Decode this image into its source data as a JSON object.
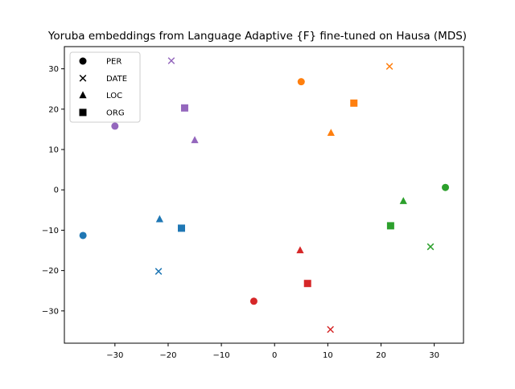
{
  "chart_data": {
    "type": "scatter",
    "title": "Yoruba embeddings from Language Adaptive {F} fine-tuned on Hausa (MDS)",
    "xlabel": "",
    "ylabel": "",
    "xlim": [
      -39.5,
      35.5
    ],
    "ylim": [
      -38,
      35.5
    ],
    "xticks": [
      -30,
      -20,
      -10,
      0,
      10,
      20,
      30
    ],
    "yticks": [
      -30,
      -20,
      -10,
      0,
      10,
      20,
      30
    ],
    "grid": false,
    "legend": {
      "location": "top-left",
      "entries": [
        {
          "label": "PER",
          "marker": "circle"
        },
        {
          "label": "DATE",
          "marker": "x"
        },
        {
          "label": "LOC",
          "marker": "triangle"
        },
        {
          "label": "ORG",
          "marker": "square"
        }
      ]
    },
    "series": [
      {
        "color": "#1f77b4",
        "points": [
          {
            "x": -36.0,
            "y": -11.3,
            "marker": "circle"
          },
          {
            "x": -21.8,
            "y": -20.2,
            "marker": "x"
          },
          {
            "x": -21.6,
            "y": -7.3,
            "marker": "triangle"
          },
          {
            "x": -17.5,
            "y": -9.5,
            "marker": "square"
          }
        ]
      },
      {
        "color": "#ff7f0e",
        "points": [
          {
            "x": 5.0,
            "y": 26.8,
            "marker": "circle"
          },
          {
            "x": 21.6,
            "y": 30.6,
            "marker": "x"
          },
          {
            "x": 10.6,
            "y": 14.1,
            "marker": "triangle"
          },
          {
            "x": 14.9,
            "y": 21.5,
            "marker": "square"
          }
        ]
      },
      {
        "color": "#2ca02c",
        "points": [
          {
            "x": 32.1,
            "y": 0.6,
            "marker": "circle"
          },
          {
            "x": 29.3,
            "y": -14.1,
            "marker": "x"
          },
          {
            "x": 24.2,
            "y": -2.8,
            "marker": "triangle"
          },
          {
            "x": 21.8,
            "y": -8.9,
            "marker": "square"
          }
        ]
      },
      {
        "color": "#d62728",
        "points": [
          {
            "x": -3.9,
            "y": -27.6,
            "marker": "circle"
          },
          {
            "x": 10.5,
            "y": -34.6,
            "marker": "x"
          },
          {
            "x": 4.8,
            "y": -15.0,
            "marker": "triangle"
          },
          {
            "x": 6.2,
            "y": -23.2,
            "marker": "square"
          }
        ]
      },
      {
        "color": "#9467bd",
        "points": [
          {
            "x": -30.0,
            "y": 15.8,
            "marker": "circle"
          },
          {
            "x": -19.4,
            "y": 32.0,
            "marker": "x"
          },
          {
            "x": -15.0,
            "y": 12.3,
            "marker": "triangle"
          },
          {
            "x": -16.9,
            "y": 20.3,
            "marker": "square"
          }
        ]
      }
    ]
  }
}
